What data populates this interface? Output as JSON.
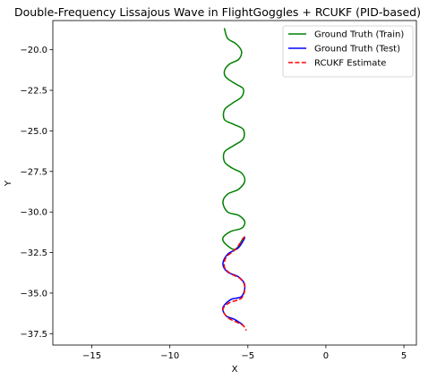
{
  "chart_data": {
    "type": "line",
    "title": "Double-Frequency Lissajous Wave in FlightGoggles + RCUKF (PID-based)",
    "xlabel": "X",
    "ylabel": "Y",
    "xlim": [
      -17.5,
      5.8
    ],
    "ylim": [
      -38.2,
      -18.2
    ],
    "xticks": [
      -15,
      -10,
      -5,
      0,
      5
    ],
    "xtick_labels": [
      "−15",
      "−10",
      "−5",
      "0",
      "5"
    ],
    "yticks": [
      -20.0,
      -22.5,
      -25.0,
      -27.5,
      -30.0,
      -32.5,
      -35.0,
      -37.5
    ],
    "ytick_labels": [
      "−20.0",
      "−22.5",
      "−25.0",
      "−27.5",
      "−30.0",
      "−32.5",
      "−35.0",
      "−37.5"
    ],
    "grid": false,
    "legend_position": "top-right",
    "series": [
      {
        "name": "Ground Truth (Train)",
        "color": "#008000",
        "style": "solid",
        "x": [
          -6.5,
          -6.3,
          -5.8,
          -5.5,
          -5.4,
          -5.6,
          -6.2,
          -6.5,
          -6.4,
          -5.8,
          -5.3,
          -5.4,
          -6.0,
          -6.5,
          -6.5,
          -5.9,
          -5.3,
          -5.3,
          -5.9,
          -6.5,
          -6.5,
          -6.0,
          -5.4,
          -5.2,
          -5.6,
          -6.3,
          -6.6,
          -6.3,
          -5.6,
          -5.2,
          -5.4,
          -6.1,
          -6.6,
          -6.4,
          -5.8,
          -5.3
        ],
        "y": [
          -18.7,
          -19.3,
          -19.6,
          -19.9,
          -20.2,
          -20.6,
          -20.9,
          -21.3,
          -21.7,
          -22.1,
          -22.4,
          -22.9,
          -23.3,
          -23.7,
          -24.3,
          -24.6,
          -24.9,
          -25.5,
          -25.9,
          -26.3,
          -26.9,
          -27.3,
          -27.6,
          -28.1,
          -28.6,
          -28.9,
          -29.4,
          -30.0,
          -30.2,
          -30.6,
          -31.0,
          -31.2,
          -31.6,
          -32.0,
          -32.3,
          -31.6
        ]
      },
      {
        "name": "Ground Truth (Test)",
        "color": "#0000ff",
        "style": "solid",
        "x": [
          -5.2,
          -5.6,
          -6.3,
          -6.6,
          -6.3,
          -5.6,
          -5.2,
          -5.4,
          -6.1,
          -6.6,
          -6.4,
          -5.9,
          -5.4,
          -5.3
        ],
        "y": [
          -31.6,
          -32.2,
          -32.6,
          -33.2,
          -33.7,
          -34.0,
          -34.5,
          -35.2,
          -35.4,
          -35.9,
          -36.4,
          -36.6,
          -36.9,
          -37.0
        ]
      },
      {
        "name": "RCUKF Estimate",
        "color": "#ff0000",
        "style": "dashed",
        "x": [
          -5.2,
          -5.8,
          -6.4,
          -6.5,
          -6.1,
          -5.5,
          -5.2,
          -5.4,
          -6.2,
          -6.6,
          -6.3,
          -5.7,
          -5.3,
          -5.1
        ],
        "y": [
          -31.5,
          -32.3,
          -32.8,
          -33.4,
          -33.8,
          -34.1,
          -34.6,
          -35.3,
          -35.6,
          -36.0,
          -36.5,
          -36.8,
          -37.0,
          -37.3
        ]
      }
    ]
  }
}
